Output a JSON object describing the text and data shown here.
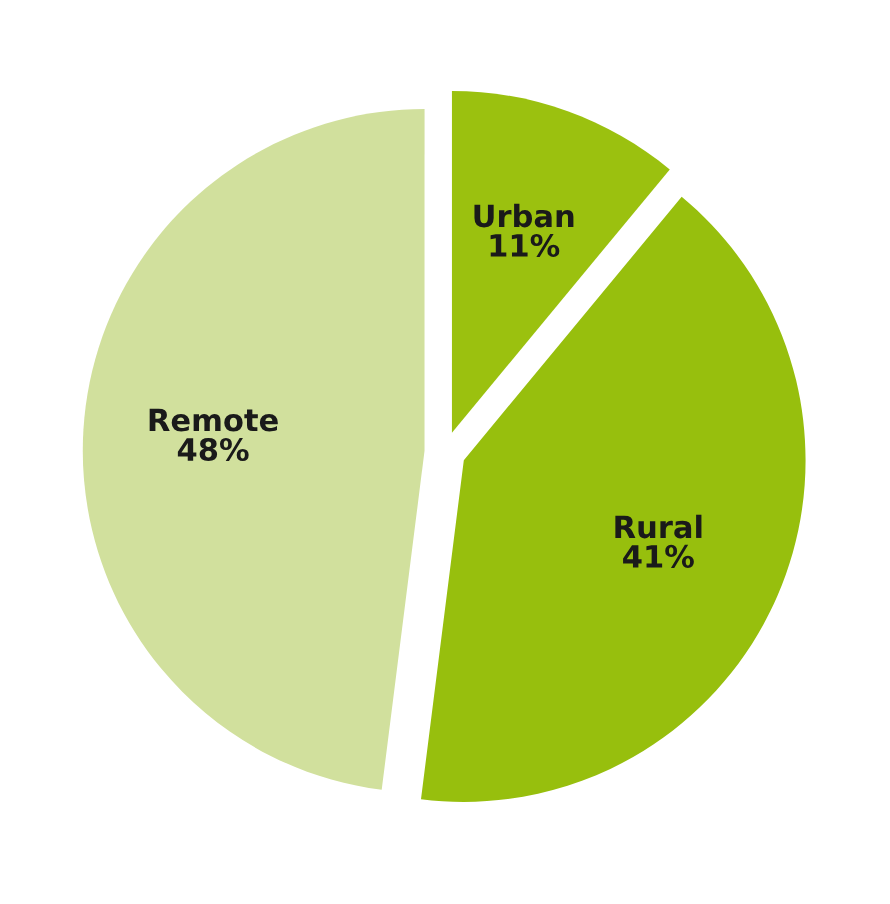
{
  "chart_data": {
    "type": "pie",
    "categories": [
      "Urban",
      "Rural",
      "Remote"
    ],
    "values": [
      11,
      41,
      48
    ],
    "value_labels": [
      "11%",
      "41%",
      "48%"
    ],
    "colors": [
      "#9bc10f",
      "#97bf0d",
      "#d1e09d"
    ]
  }
}
